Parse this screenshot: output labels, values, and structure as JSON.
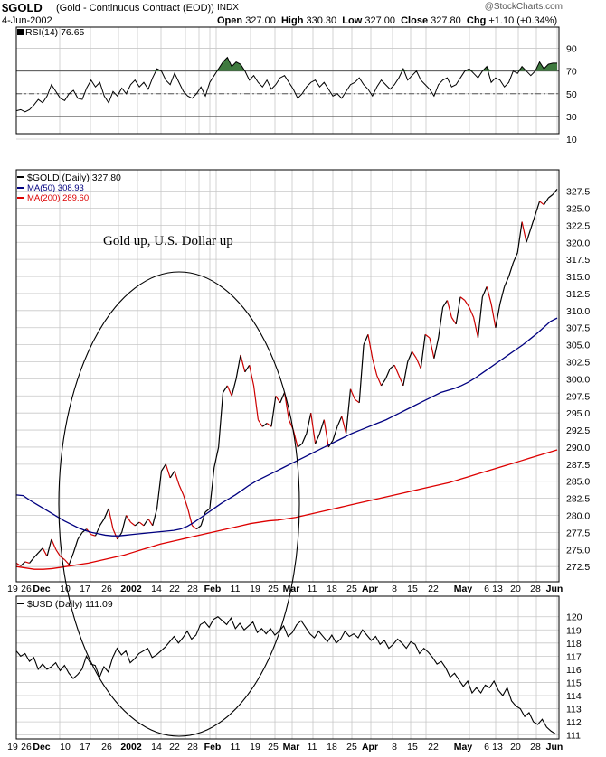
{
  "header": {
    "symbol": "$GOLD",
    "description": "(Gold - Continuous Contract (EOD))",
    "exchange": "INDX",
    "date": "4-Jun-2002",
    "open_label": "Open",
    "open": "327.00",
    "high_label": "High",
    "high": "330.30",
    "low_label": "Low",
    "low": "327.00",
    "close_label": "Close",
    "close": "327.80",
    "chg_label": "Chg",
    "chg": "+1.10 (+0.34%)",
    "watermark": "@StockCharts.com"
  },
  "chart_data": [
    {
      "type": "line",
      "panel": "rsi",
      "legend": "RSI(14) 76.65",
      "yticks": [
        90,
        70,
        50,
        30,
        10
      ],
      "ylim": [
        10,
        100
      ],
      "reference_lines": [
        70,
        50,
        30
      ],
      "series": [
        {
          "name": "RSI(14)",
          "values": [
            35,
            36,
            34,
            36,
            40,
            45,
            42,
            48,
            58,
            52,
            46,
            44,
            50,
            53,
            46,
            45,
            55,
            62,
            56,
            60,
            48,
            42,
            52,
            48,
            55,
            50,
            58,
            62,
            56,
            60,
            54,
            64,
            72,
            70,
            62,
            58,
            68,
            60,
            52,
            48,
            46,
            50,
            56,
            48,
            60,
            66,
            72,
            78,
            82,
            74,
            78,
            76,
            70,
            62,
            66,
            60,
            56,
            62,
            54,
            58,
            64,
            66,
            60,
            54,
            46,
            50,
            56,
            60,
            62,
            56,
            60,
            54,
            48,
            50,
            46,
            52,
            58,
            60,
            64,
            58,
            54,
            48,
            56,
            62,
            58,
            54,
            58,
            64,
            72,
            62,
            66,
            70,
            62,
            58,
            54,
            48,
            58,
            62,
            64,
            56,
            58,
            64,
            70,
            72,
            68,
            64,
            70,
            74,
            60,
            64,
            62,
            56,
            60,
            70,
            68,
            74,
            70,
            66,
            70,
            78,
            72,
            76,
            77,
            77
          ]
        }
      ],
      "shaded_above": 70
    },
    {
      "type": "line",
      "panel": "gold",
      "legend": [
        "$GOLD (Daily) 327.80",
        "MA(50) 308.93",
        "MA(200) 289.60"
      ],
      "yticks": [
        327.5,
        325.0,
        322.5,
        320.0,
        317.5,
        315.0,
        312.5,
        310.0,
        307.5,
        305.0,
        302.5,
        300.0,
        297.5,
        295.0,
        292.5,
        290.0,
        287.5,
        285.0,
        282.5,
        280.0,
        277.5,
        275.0,
        272.5
      ],
      "ylim": [
        271.2,
        329.3
      ],
      "annotation": "Gold up, U.S. Dollar up",
      "series": [
        {
          "name": "$GOLD (Daily)",
          "values": [
            273.0,
            272.6,
            273.2,
            273.0,
            273.8,
            274.5,
            275.2,
            274.0,
            276.5,
            275.0,
            274.0,
            273.5,
            272.8,
            274.5,
            276.5,
            277.5,
            278.0,
            277.2,
            277.0,
            278.5,
            279.5,
            281.0,
            278.0,
            276.5,
            277.5,
            280.0,
            279.0,
            278.5,
            279.0,
            278.5,
            279.5,
            278.5,
            281.0,
            286.5,
            287.5,
            285.5,
            286.5,
            284.5,
            283.0,
            281.0,
            278.5,
            278.0,
            278.5,
            280.5,
            281.0,
            287.0,
            290.0,
            298.0,
            299.0,
            297.5,
            300.0,
            303.5,
            301.0,
            302.0,
            299.0,
            294.0,
            293.0,
            293.5,
            293.0,
            297.5,
            296.5,
            298.0,
            294.0,
            292.5,
            290.0,
            290.5,
            292.0,
            295.0,
            290.5,
            292.0,
            294.0,
            290.0,
            291.0,
            293.0,
            294.5,
            292.0,
            298.5,
            297.0,
            296.5,
            305.0,
            306.5,
            303.0,
            300.5,
            299.0,
            300.0,
            301.5,
            302.0,
            300.5,
            299.0,
            302.5,
            304.0,
            303.0,
            301.5,
            306.5,
            306.0,
            303.0,
            306.0,
            310.5,
            311.5,
            309.0,
            308.0,
            312.0,
            311.5,
            310.5,
            309.0,
            306.0,
            312.0,
            313.5,
            311.0,
            307.5,
            311.0,
            313.5,
            315.0,
            317.0,
            318.5,
            323.0,
            320.0,
            322.0,
            324.0,
            326.0,
            325.5,
            326.5,
            327.0,
            327.8
          ]
        },
        {
          "name": "MA(50)",
          "values": [
            283.0,
            282.9,
            282.2,
            281.6,
            281.0,
            280.4,
            279.8,
            279.2,
            278.7,
            278.2,
            277.8,
            277.5,
            277.3,
            277.1,
            277.0,
            277.0,
            277.1,
            277.2,
            277.3,
            277.4,
            277.5,
            277.6,
            277.7,
            277.8,
            278.0,
            278.4,
            279.0,
            279.7,
            280.4,
            281.1,
            281.8,
            282.4,
            283.0,
            283.7,
            284.4,
            285.0,
            285.5,
            286.0,
            286.5,
            287.0,
            287.5,
            288.0,
            288.5,
            289.0,
            289.5,
            290.0,
            290.5,
            291.0,
            291.5,
            292.0,
            292.4,
            292.8,
            293.2,
            293.6,
            294.0,
            294.5,
            295.0,
            295.5,
            296.0,
            296.5,
            297.0,
            297.5,
            298.0,
            298.3,
            298.6,
            299.0,
            299.5,
            300.1,
            300.8,
            301.5,
            302.2,
            302.9,
            303.6,
            304.3,
            305.0,
            305.8,
            306.6,
            307.5,
            308.4,
            308.9
          ]
        },
        {
          "name": "MA(200)",
          "values": [
            272.5,
            272.3,
            272.1,
            272.1,
            272.2,
            272.4,
            272.6,
            272.8,
            273.0,
            273.3,
            273.6,
            273.9,
            274.2,
            274.6,
            275.0,
            275.4,
            275.8,
            276.1,
            276.4,
            276.7,
            277.0,
            277.3,
            277.6,
            277.9,
            278.2,
            278.5,
            278.8,
            279.0,
            279.2,
            279.3,
            279.5,
            279.7,
            280.0,
            280.3,
            280.6,
            280.9,
            281.2,
            281.5,
            281.8,
            282.1,
            282.4,
            282.7,
            283.0,
            283.3,
            283.6,
            283.9,
            284.2,
            284.5,
            284.8,
            285.2,
            285.6,
            286.0,
            286.4,
            286.8,
            287.2,
            287.6,
            288.0,
            288.4,
            288.8,
            289.2,
            289.6
          ]
        }
      ]
    },
    {
      "type": "line",
      "panel": "usd",
      "legend": "$USD (Daily) 111.09",
      "yticks": [
        120,
        119,
        118,
        117,
        116,
        115,
        114,
        113,
        112,
        111
      ],
      "ylim": [
        110.7,
        120.6
      ],
      "series": [
        {
          "name": "$USD (Daily)",
          "values": [
            117.4,
            117.0,
            117.2,
            116.6,
            116.9,
            116.0,
            116.4,
            116.0,
            116.2,
            116.5,
            115.9,
            116.3,
            115.7,
            115.3,
            115.6,
            116.0,
            117.0,
            116.4,
            116.3,
            115.4,
            116.2,
            115.8,
            116.9,
            117.6,
            117.1,
            117.4,
            116.5,
            116.8,
            117.2,
            117.4,
            117.6,
            116.9,
            117.1,
            117.4,
            117.7,
            118.1,
            118.5,
            118.0,
            118.4,
            118.9,
            118.3,
            118.6,
            119.4,
            119.6,
            119.2,
            119.8,
            120.0,
            119.7,
            119.4,
            119.9,
            119.1,
            119.5,
            119.0,
            119.3,
            119.6,
            118.8,
            119.1,
            118.7,
            119.1,
            118.6,
            118.9,
            119.3,
            118.5,
            118.8,
            119.4,
            119.7,
            119.2,
            118.7,
            118.4,
            118.9,
            118.5,
            118.1,
            118.6,
            118.0,
            118.3,
            118.9,
            118.5,
            118.7,
            118.4,
            119.0,
            118.6,
            118.2,
            118.5,
            117.9,
            118.2,
            117.6,
            117.9,
            118.3,
            118.0,
            117.6,
            118.1,
            117.9,
            117.2,
            117.6,
            117.3,
            116.9,
            116.4,
            116.6,
            116.1,
            115.4,
            115.7,
            115.2,
            114.7,
            115.1,
            114.2,
            114.6,
            114.2,
            114.8,
            114.6,
            115.1,
            114.4,
            114.0,
            114.6,
            113.6,
            113.2,
            113.0,
            112.4,
            112.7,
            112.0,
            111.8,
            112.2,
            111.6,
            111.3,
            111.09
          ]
        }
      ]
    }
  ],
  "x_axis_labels": [
    "19",
    "26",
    "Dec",
    "10",
    "17",
    "26",
    "2002",
    "14",
    "22",
    "28",
    "Feb",
    "11",
    "19",
    "25",
    "Mar",
    "11",
    "18",
    "25",
    "Apr",
    "8",
    "15",
    "22",
    "May",
    "6",
    "13",
    "20",
    "28",
    "Jun"
  ],
  "colors": {
    "price": "#000000",
    "price_down": "#cc0000",
    "ma50": "#000080",
    "ma200": "#dd0000",
    "rsi_fill": "#3f7a3f",
    "grid": "#c8c8c8",
    "ellipse": "#000000"
  }
}
